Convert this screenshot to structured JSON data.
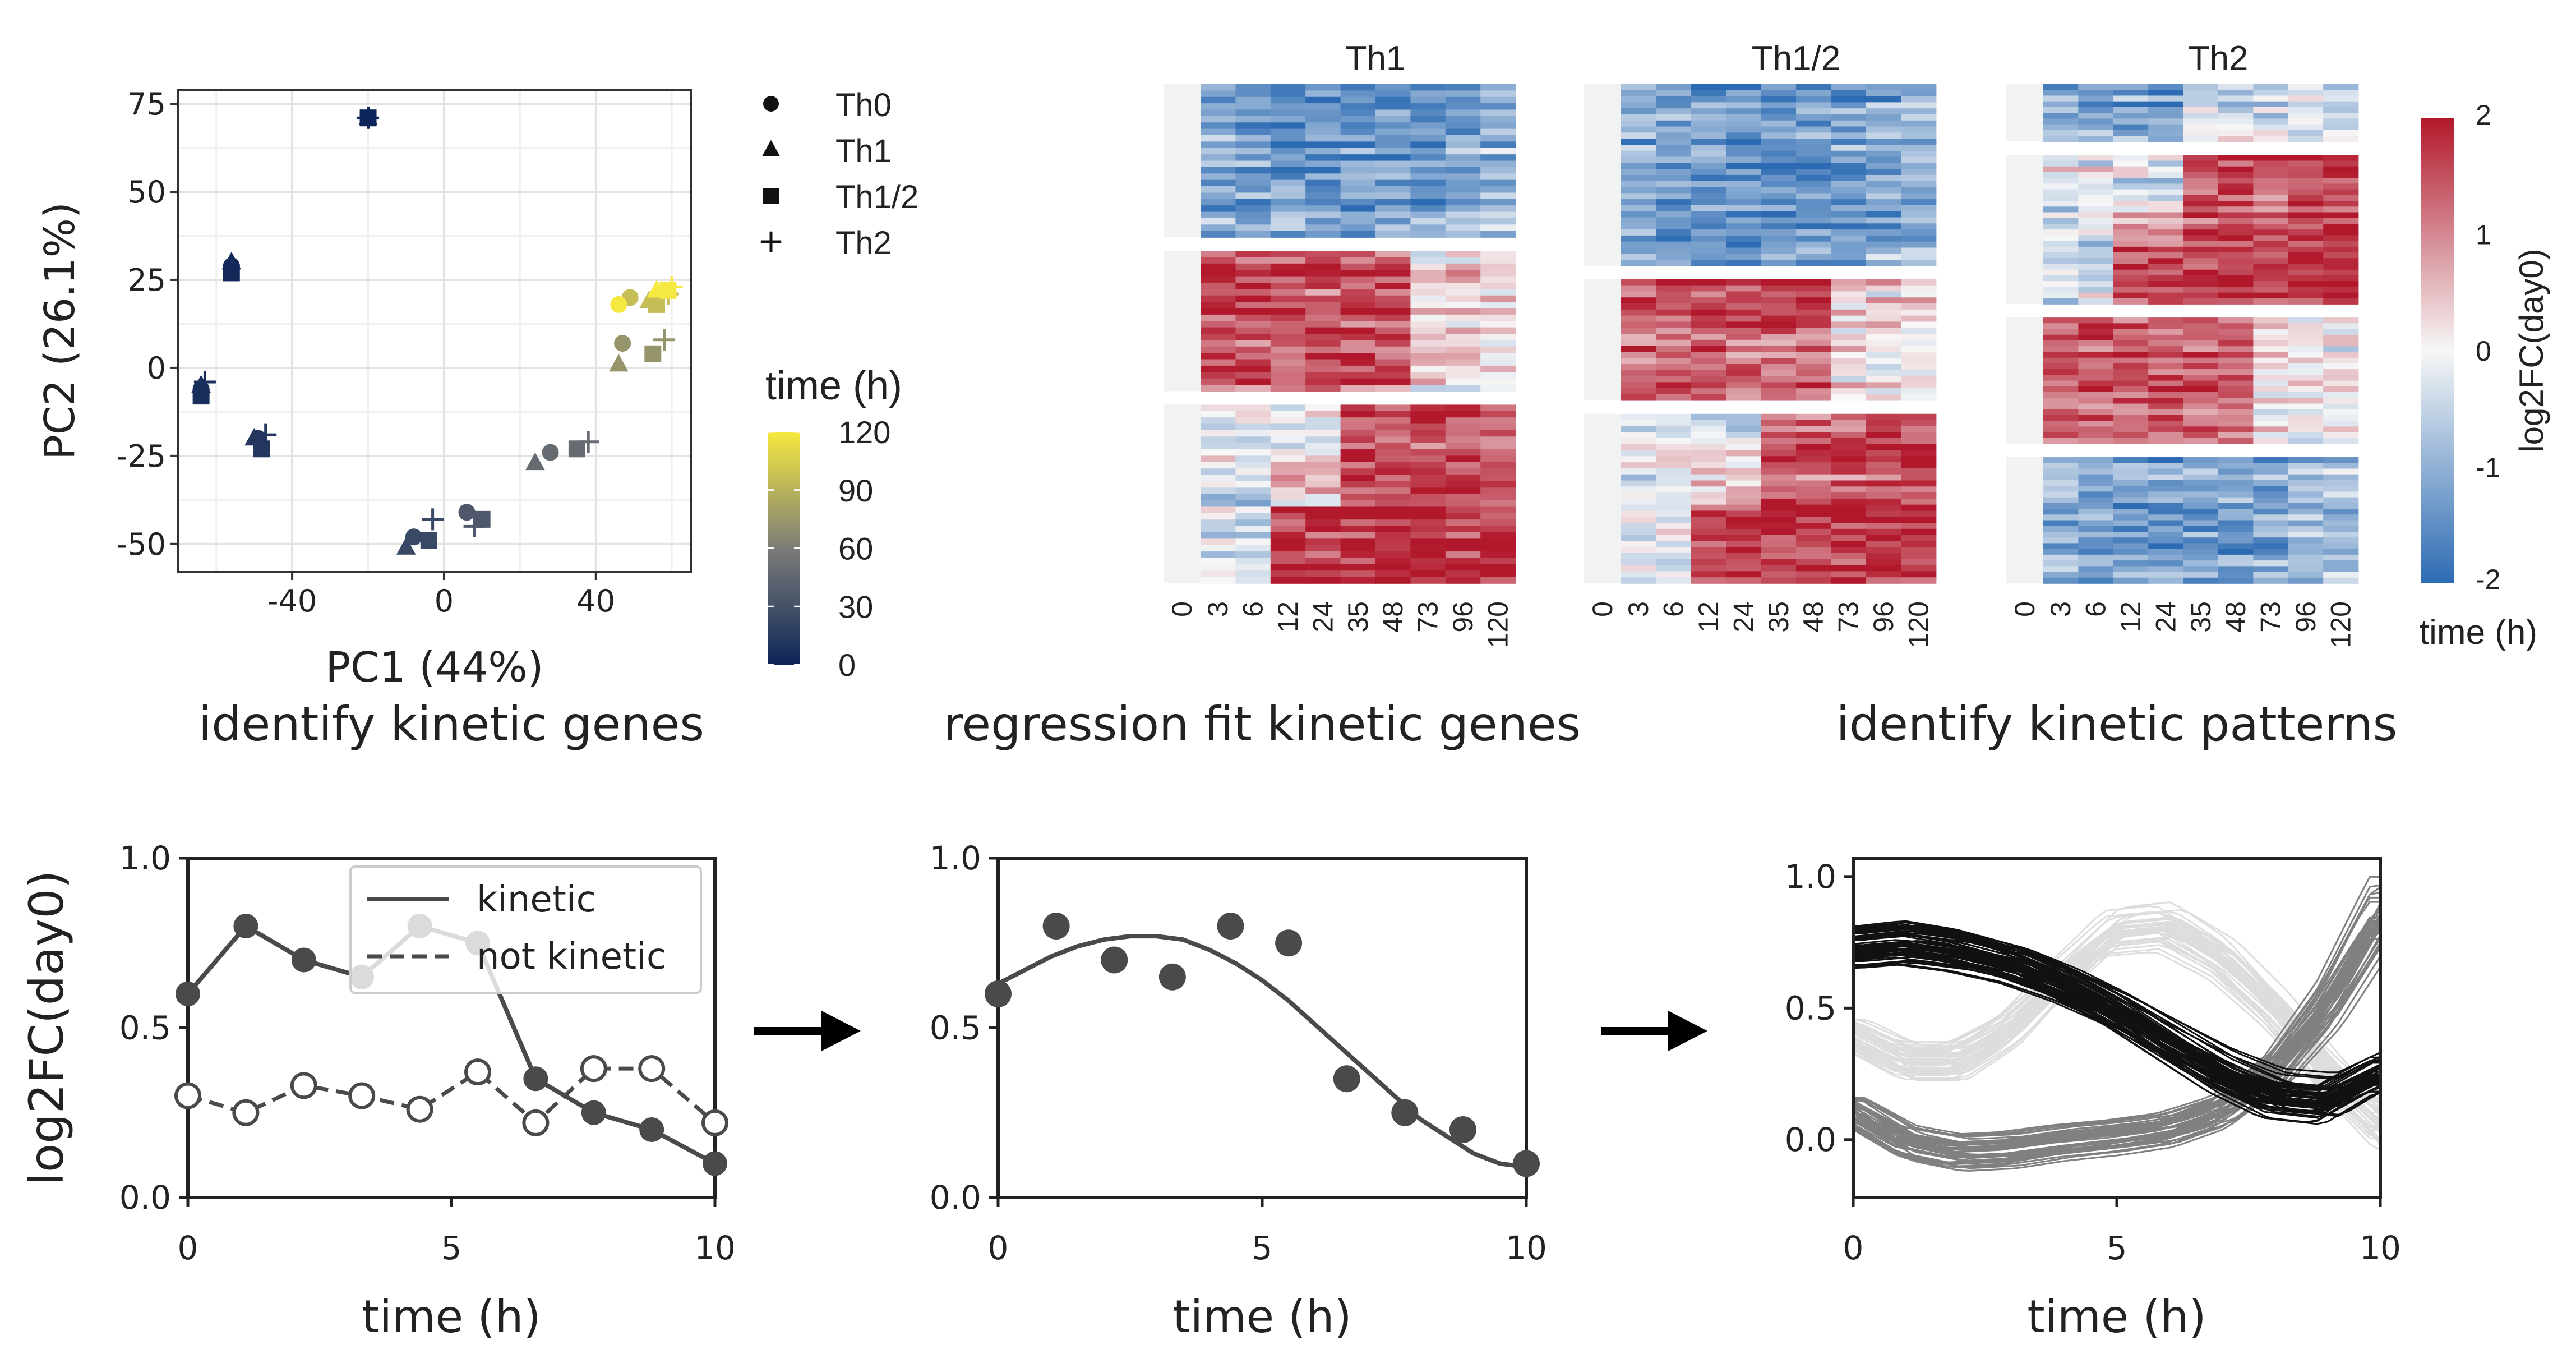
{
  "colors": {
    "time_low": "#0d2558",
    "time_mid": "#7c7d77",
    "time_high": "#f5e840",
    "heat_low": "#2c6bb3",
    "heat_mid": "#f7f7f7",
    "heat_high": "#b2182b",
    "kinetic_series": "#4a4a4a",
    "pattern_black": "#111111",
    "pattern_light": "#dddddd",
    "pattern_gray": "#808080"
  },
  "chart_data": [
    {
      "type": "scatter",
      "panel": "pca",
      "xlabel": "PC1 (44%)",
      "ylabel": "PC2 (26.1%)",
      "xlim": [
        -70,
        65
      ],
      "ylim": [
        -58,
        79
      ],
      "xticks": [
        -40,
        0,
        40
      ],
      "yticks": [
        -50,
        -25,
        0,
        25,
        50,
        75
      ],
      "xtick_labels": [
        "-40",
        "0",
        "40"
      ],
      "ytick_labels": [
        "-50",
        "-25",
        "0",
        "25",
        "50",
        "75"
      ],
      "grid": true,
      "shape_legend": {
        "entries": [
          {
            "label": "Th0",
            "shape": "circle"
          },
          {
            "label": "Th1",
            "shape": "triangle"
          },
          {
            "label": "Th1/2",
            "shape": "square"
          },
          {
            "label": "Th2",
            "shape": "plus"
          }
        ]
      },
      "color_legend": {
        "title": "time (h)",
        "ticks": [
          120,
          90,
          60,
          30,
          0
        ],
        "tick_labels": [
          "120",
          "90",
          "60",
          "30",
          "0"
        ],
        "range": [
          0,
          120
        ]
      },
      "points": [
        {
          "x": -20,
          "y": 71,
          "shape": "circle",
          "t": 0
        },
        {
          "x": -20,
          "y": 71,
          "shape": "triangle",
          "t": 0
        },
        {
          "x": -20,
          "y": 71,
          "shape": "square",
          "t": 0
        },
        {
          "x": -20,
          "y": 71,
          "shape": "plus",
          "t": 0
        },
        {
          "x": -56,
          "y": 29,
          "shape": "circle",
          "t": 3
        },
        {
          "x": -56,
          "y": 30,
          "shape": "triangle",
          "t": 3
        },
        {
          "x": -56,
          "y": 27,
          "shape": "square",
          "t": 3
        },
        {
          "x": -64,
          "y": -6,
          "shape": "circle",
          "t": 6
        },
        {
          "x": -64,
          "y": -5,
          "shape": "triangle",
          "t": 6
        },
        {
          "x": -64,
          "y": -8,
          "shape": "square",
          "t": 6
        },
        {
          "x": -63,
          "y": -4,
          "shape": "plus",
          "t": 6
        },
        {
          "x": -49,
          "y": -20,
          "shape": "circle",
          "t": 12
        },
        {
          "x": -50,
          "y": -20,
          "shape": "triangle",
          "t": 12
        },
        {
          "x": -48,
          "y": -23,
          "shape": "square",
          "t": 12
        },
        {
          "x": -47,
          "y": -19,
          "shape": "plus",
          "t": 12
        },
        {
          "x": -8,
          "y": -48,
          "shape": "circle",
          "t": 24
        },
        {
          "x": -10,
          "y": -51,
          "shape": "triangle",
          "t": 24
        },
        {
          "x": -4,
          "y": -49,
          "shape": "square",
          "t": 24
        },
        {
          "x": -3,
          "y": -43,
          "shape": "plus",
          "t": 24
        },
        {
          "x": 6,
          "y": -41,
          "shape": "circle",
          "t": 35
        },
        {
          "x": 10,
          "y": -43,
          "shape": "square",
          "t": 35
        },
        {
          "x": 8,
          "y": -45,
          "shape": "plus",
          "t": 35
        },
        {
          "x": 28,
          "y": -24,
          "shape": "circle",
          "t": 48
        },
        {
          "x": 24,
          "y": -27,
          "shape": "triangle",
          "t": 48
        },
        {
          "x": 35,
          "y": -23,
          "shape": "square",
          "t": 48
        },
        {
          "x": 38,
          "y": -21,
          "shape": "plus",
          "t": 48
        },
        {
          "x": 47,
          "y": 7,
          "shape": "circle",
          "t": 73
        },
        {
          "x": 46,
          "y": 1,
          "shape": "triangle",
          "t": 73
        },
        {
          "x": 55,
          "y": 4,
          "shape": "square",
          "t": 73
        },
        {
          "x": 58,
          "y": 8,
          "shape": "plus",
          "t": 73
        },
        {
          "x": 49,
          "y": 20,
          "shape": "circle",
          "t": 96
        },
        {
          "x": 54,
          "y": 19,
          "shape": "triangle",
          "t": 96
        },
        {
          "x": 56,
          "y": 18,
          "shape": "square",
          "t": 96
        },
        {
          "x": 59,
          "y": 21,
          "shape": "plus",
          "t": 96
        },
        {
          "x": 46,
          "y": 18,
          "shape": "circle",
          "t": 120
        },
        {
          "x": 56,
          "y": 22,
          "shape": "triangle",
          "t": 120
        },
        {
          "x": 59,
          "y": 22,
          "shape": "square",
          "t": 120
        },
        {
          "x": 60,
          "y": 23,
          "shape": "plus",
          "t": 120
        }
      ]
    },
    {
      "type": "heatmap",
      "panel": "heatmaps",
      "panels": [
        {
          "title": "Th1",
          "clusters": [
            "down",
            "up-early",
            "up-late"
          ],
          "cluster_rows": [
            24,
            22,
            28
          ]
        },
        {
          "title": "Th1/2",
          "clusters": [
            "down",
            "up-early",
            "up-late"
          ],
          "cluster_rows": [
            30,
            20,
            28
          ]
        },
        {
          "title": "Th2",
          "clusters": [
            "down-mixed",
            "up-late",
            "up-mid",
            "down"
          ],
          "cluster_rows": [
            10,
            26,
            22,
            22
          ]
        }
      ],
      "columns": [
        "0",
        "3",
        "6",
        "12",
        "24",
        "35",
        "48",
        "73",
        "96",
        "120"
      ],
      "xlabel": "time (h)",
      "colorbar": {
        "title": "log2FC(day0)",
        "range": [
          -2,
          2
        ],
        "ticks": [
          2,
          1,
          0,
          -1,
          -2
        ],
        "tick_labels": [
          "2",
          "1",
          "0",
          "-1",
          "-2"
        ]
      }
    },
    {
      "type": "line",
      "panel": "kinetic",
      "title": "identify kinetic genes",
      "xlabel": "time (h)",
      "ylabel": "log2FC(day0)",
      "xlim": [
        0,
        10
      ],
      "ylim": [
        0,
        1
      ],
      "xticks": [
        0,
        5,
        10
      ],
      "yticks": [
        0,
        0.5,
        1
      ],
      "xtick_labels": [
        "0",
        "5",
        "10"
      ],
      "ytick_labels": [
        "0.0",
        "0.5",
        "1.0"
      ],
      "legend": {
        "position": "top-right",
        "entries": [
          "kinetic",
          "not kinetic"
        ]
      },
      "series": [
        {
          "name": "kinetic",
          "style": "solid",
          "x": [
            0,
            1.1,
            2.2,
            3.3,
            4.4,
            5.5,
            6.6,
            7.7,
            8.8,
            10
          ],
          "y": [
            0.6,
            0.8,
            0.7,
            0.65,
            0.8,
            0.75,
            0.35,
            0.25,
            0.2,
            0.1
          ]
        },
        {
          "name": "not kinetic",
          "style": "dashed",
          "x": [
            0,
            1.1,
            2.2,
            3.3,
            4.4,
            5.5,
            6.6,
            7.7,
            8.8,
            10
          ],
          "y": [
            0.3,
            0.25,
            0.33,
            0.3,
            0.26,
            0.37,
            0.22,
            0.38,
            0.38,
            0.22
          ]
        }
      ]
    },
    {
      "type": "scatter",
      "panel": "regression",
      "title": "regression fit kinetic genes",
      "xlabel": "time (h)",
      "xlim": [
        0,
        10
      ],
      "ylim": [
        0,
        1
      ],
      "xticks": [
        0,
        5,
        10
      ],
      "yticks": [
        0,
        0.5,
        1
      ],
      "xtick_labels": [
        "0",
        "5",
        "10"
      ],
      "ytick_labels": [
        "0.0",
        "0.5",
        "1.0"
      ],
      "points": {
        "x": [
          0,
          1.1,
          2.2,
          3.3,
          4.4,
          5.5,
          6.6,
          7.7,
          8.8,
          10
        ],
        "y": [
          0.6,
          0.8,
          0.7,
          0.65,
          0.8,
          0.75,
          0.35,
          0.25,
          0.2,
          0.1
        ]
      },
      "fit": {
        "x": [
          0,
          0.5,
          1,
          1.5,
          2,
          2.5,
          3,
          3.5,
          4,
          4.5,
          5,
          5.5,
          6,
          6.5,
          7,
          7.5,
          8,
          8.5,
          9,
          9.5,
          10
        ],
        "y": [
          0.63,
          0.67,
          0.71,
          0.74,
          0.76,
          0.77,
          0.77,
          0.76,
          0.73,
          0.69,
          0.64,
          0.58,
          0.51,
          0.44,
          0.37,
          0.3,
          0.23,
          0.18,
          0.13,
          0.1,
          0.09
        ]
      }
    },
    {
      "type": "line",
      "panel": "patterns",
      "title": "identify kinetic patterns",
      "xlabel": "time (h)",
      "xlim": [
        0,
        10
      ],
      "ylim": [
        -0.22,
        1.07
      ],
      "xticks": [
        0,
        5,
        10
      ],
      "yticks": [
        0,
        0.5,
        1
      ],
      "xtick_labels": [
        "0",
        "5",
        "10"
      ],
      "ytick_labels": [
        "0.0",
        "0.5",
        "1.0"
      ],
      "clusters": [
        {
          "color": "black",
          "count": 60,
          "base_x": [
            0,
            1,
            2,
            3,
            4,
            5,
            6,
            7,
            8,
            9,
            10
          ],
          "base_y": [
            0.74,
            0.76,
            0.73,
            0.68,
            0.6,
            0.5,
            0.38,
            0.26,
            0.17,
            0.15,
            0.26
          ]
        },
        {
          "color": "light",
          "count": 45,
          "base_x": [
            0,
            1,
            2,
            3,
            4,
            5,
            6,
            7,
            8,
            9,
            10
          ],
          "base_y": [
            0.4,
            0.3,
            0.3,
            0.42,
            0.62,
            0.8,
            0.82,
            0.7,
            0.5,
            0.25,
            0.05
          ]
        },
        {
          "color": "gray",
          "count": 45,
          "base_x": [
            0,
            1,
            2,
            3,
            4,
            5,
            6,
            7,
            8,
            9,
            10
          ],
          "base_y": [
            0.1,
            -0.02,
            -0.06,
            -0.05,
            -0.02,
            0.0,
            0.03,
            0.1,
            0.25,
            0.5,
            0.85
          ]
        }
      ]
    }
  ]
}
